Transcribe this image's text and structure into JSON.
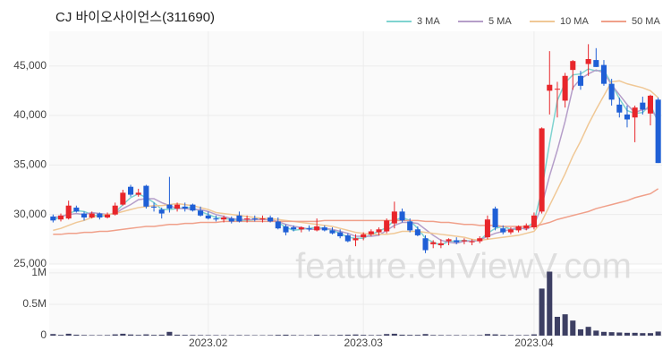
{
  "chart_data": [
    {
      "type": "candlestick",
      "title": "CJ 바이오사이언스(311690)",
      "watermark": "feature.enViewV.com",
      "categories": [
        null,
        null,
        null,
        null,
        null,
        null,
        null,
        null,
        null,
        null,
        null,
        null,
        null,
        null,
        null,
        null,
        null,
        null,
        null,
        null,
        "2023.02",
        null,
        null,
        null,
        null,
        null,
        null,
        null,
        null,
        null,
        null,
        null,
        null,
        null,
        null,
        null,
        null,
        null,
        null,
        null,
        "2023.03",
        null,
        null,
        null,
        null,
        null,
        null,
        null,
        null,
        null,
        null,
        null,
        null,
        null,
        null,
        null,
        null,
        null,
        null,
        null,
        null,
        null,
        "2023.04",
        null,
        null,
        null,
        null,
        null,
        null,
        null,
        null,
        null,
        null,
        null,
        null,
        null,
        null,
        null,
        null
      ],
      "open": [
        29800,
        29500,
        29600,
        30700,
        30100,
        29700,
        30100,
        29700,
        30000,
        31000,
        32800,
        32000,
        32900,
        30800,
        30500,
        31000,
        30600,
        30800,
        31000,
        30400,
        29900,
        29600,
        29500,
        29600,
        29900,
        29500,
        29600,
        29500,
        29700,
        29300,
        28800,
        28700,
        28500,
        28600,
        28400,
        28700,
        28400,
        28200,
        27900,
        27400,
        27700,
        28000,
        28200,
        28300,
        29100,
        30300,
        29300,
        28500,
        27600,
        27000,
        26900,
        27300,
        27400,
        27300,
        27200,
        27300,
        27700,
        30600,
        28600,
        28200,
        28400,
        28600,
        28700,
        30300,
        42500,
        42700,
        41500,
        44600,
        44000,
        45200,
        45600,
        45100,
        43200,
        41100,
        40100,
        39800,
        41300,
        40200,
        41600
      ],
      "high": [
        30000,
        30100,
        31400,
        30900,
        30300,
        30300,
        30200,
        30200,
        31200,
        32500,
        33000,
        32600,
        33000,
        31200,
        30700,
        33800,
        31200,
        31200,
        31100,
        30800,
        30300,
        29900,
        29900,
        29800,
        30300,
        29900,
        29900,
        29900,
        29900,
        29700,
        29000,
        28900,
        28800,
        28900,
        29600,
        28900,
        28700,
        28500,
        28100,
        28000,
        28200,
        28500,
        28700,
        29600,
        31300,
        30600,
        29600,
        28800,
        27900,
        27400,
        27500,
        27600,
        27700,
        27600,
        27500,
        27800,
        29900,
        30800,
        28900,
        28700,
        28900,
        29100,
        30200,
        38800,
        46500,
        43400,
        44300,
        45600,
        44500,
        47200,
        46800,
        45600,
        43700,
        41800,
        41000,
        41000,
        41900,
        42100,
        41800
      ],
      "low": [
        29200,
        29300,
        29500,
        30200,
        29400,
        29600,
        29500,
        29600,
        29900,
        30900,
        31800,
        31800,
        30600,
        30300,
        29600,
        30200,
        30300,
        30300,
        30300,
        29800,
        29500,
        29300,
        29200,
        29100,
        29200,
        29200,
        29300,
        29200,
        29200,
        28500,
        27900,
        28300,
        28200,
        28300,
        28300,
        28300,
        28000,
        27600,
        27200,
        26800,
        27400,
        27800,
        27900,
        28100,
        28600,
        29200,
        28200,
        27800,
        26100,
        26600,
        26600,
        26900,
        27000,
        27000,
        26900,
        27100,
        27500,
        28400,
        28000,
        28000,
        28200,
        28400,
        28500,
        30100,
        40100,
        39800,
        40800,
        42600,
        42600,
        44000,
        44900,
        43000,
        41000,
        39800,
        38800,
        37300,
        40100,
        39000,
        35200
      ],
      "close": [
        29400,
        29900,
        30900,
        30300,
        29700,
        30100,
        29700,
        30000,
        30900,
        32200,
        32000,
        32200,
        30800,
        30700,
        30100,
        30600,
        31000,
        30600,
        30400,
        29900,
        29600,
        29500,
        29700,
        29300,
        29300,
        29600,
        29500,
        29600,
        29300,
        28600,
        28200,
        28500,
        28700,
        28500,
        28800,
        28400,
        28100,
        27800,
        27300,
        27600,
        28000,
        28300,
        28500,
        29400,
        30300,
        29400,
        28400,
        27900,
        26400,
        27200,
        27100,
        27500,
        27200,
        27400,
        27300,
        27600,
        29500,
        28700,
        28200,
        28500,
        28800,
        28900,
        29900,
        38700,
        43100,
        42700,
        44000,
        45500,
        43000,
        45700,
        44900,
        43200,
        41600,
        40300,
        39600,
        40800,
        40600,
        42000,
        35200
      ],
      "up_color": "#e8262b",
      "down_color": "#1f5fd6",
      "series": [
        {
          "name": "3 MA",
          "color": "#7fd3d0",
          "values": [
            29500,
            29700,
            30100,
            30400,
            30300,
            30000,
            29800,
            29900,
            30200,
            31000,
            31700,
            32100,
            31700,
            31200,
            30500,
            30500,
            30600,
            30700,
            30700,
            30300,
            30000,
            29700,
            29600,
            29500,
            29400,
            29400,
            29500,
            29600,
            29500,
            29200,
            28700,
            28400,
            28500,
            28600,
            28700,
            28600,
            28400,
            28100,
            27700,
            27600,
            27600,
            28000,
            28300,
            28700,
            29400,
            29700,
            29400,
            28600,
            27600,
            27200,
            26900,
            27300,
            27300,
            27400,
            27300,
            27400,
            28100,
            28600,
            28800,
            28500,
            28500,
            28700,
            29200,
            32500,
            37200,
            41500,
            43300,
            44100,
            44200,
            44700,
            44500,
            44600,
            43200,
            41700,
            40500,
            40200,
            40300,
            41100,
            39300
          ]
        },
        {
          "name": "5 MA",
          "color": "#b59ec9",
          "values": [
            29700,
            29800,
            30000,
            30100,
            30000,
            30200,
            30100,
            30000,
            30100,
            30600,
            31000,
            31500,
            31600,
            31600,
            31200,
            30900,
            30600,
            30600,
            30500,
            30500,
            30300,
            30000,
            29800,
            29600,
            29500,
            29500,
            29500,
            29500,
            29500,
            29300,
            29000,
            28800,
            28700,
            28500,
            28500,
            28600,
            28500,
            28300,
            28100,
            27800,
            27800,
            27800,
            27900,
            28400,
            28900,
            29200,
            29200,
            29100,
            28500,
            27900,
            27400,
            27200,
            27100,
            27300,
            27300,
            27400,
            27800,
            28100,
            28300,
            28500,
            28700,
            28500,
            28900,
            30900,
            33900,
            36500,
            39400,
            42800,
            43700,
            44200,
            44600,
            44300,
            43100,
            42100,
            41100,
            40300,
            40600,
            40700,
            39600
          ]
        },
        {
          "name": "10 MA",
          "color": "#f0c896",
          "values": [
            28400,
            28600,
            28900,
            29200,
            29400,
            29700,
            29900,
            30000,
            30100,
            30300,
            30500,
            30700,
            30800,
            30900,
            30900,
            31000,
            31100,
            31000,
            30900,
            30700,
            30500,
            30200,
            30100,
            30000,
            29900,
            29800,
            29700,
            29600,
            29600,
            29500,
            29400,
            29300,
            29200,
            29100,
            29000,
            28900,
            28800,
            28600,
            28400,
            28200,
            28100,
            28000,
            28000,
            28000,
            28100,
            28300,
            28300,
            28300,
            28200,
            28100,
            28000,
            27900,
            27800,
            27700,
            27500,
            27400,
            27500,
            27600,
            27700,
            27800,
            27900,
            28100,
            28300,
            29300,
            30900,
            32500,
            34100,
            35900,
            37400,
            39100,
            40600,
            42000,
            43400,
            43500,
            43200,
            43000,
            42800,
            42500,
            41800
          ]
        },
        {
          "name": "50 MA",
          "color": "#f0a08a",
          "values": [
            28000,
            28000,
            28100,
            28100,
            28200,
            28200,
            28300,
            28300,
            28400,
            28500,
            28600,
            28700,
            28800,
            28800,
            28900,
            29000,
            29000,
            29100,
            29100,
            29200,
            29200,
            29200,
            29300,
            29300,
            29300,
            29300,
            29300,
            29300,
            29300,
            29300,
            29300,
            29300,
            29300,
            29300,
            29300,
            29400,
            29400,
            29400,
            29400,
            29400,
            29400,
            29400,
            29400,
            29400,
            29400,
            29400,
            29400,
            29400,
            29300,
            29300,
            29200,
            29200,
            29100,
            29000,
            29000,
            28900,
            28900,
            28900,
            28800,
            28800,
            28800,
            28800,
            28800,
            29000,
            29200,
            29500,
            29700,
            29900,
            30100,
            30300,
            30600,
            30800,
            31000,
            31200,
            31400,
            31700,
            31900,
            32100,
            32600
          ]
        }
      ],
      "ylim": [
        25000,
        48500
      ],
      "yticks": [
        {
          "value": 25000,
          "label": "25,000"
        },
        {
          "value": 30000,
          "label": "30,000"
        },
        {
          "value": 35000,
          "label": "35,000"
        },
        {
          "value": 40000,
          "label": "40,000"
        },
        {
          "value": 45000,
          "label": "45,000"
        }
      ],
      "grid": true
    },
    {
      "type": "bar",
      "color": "#3d3f63",
      "values": [
        25000,
        12000,
        30000,
        15000,
        10000,
        8000,
        8000,
        9000,
        20000,
        30000,
        18000,
        12000,
        20000,
        12000,
        15000,
        60000,
        15000,
        12000,
        10000,
        9000,
        8000,
        8000,
        7000,
        8000,
        9000,
        8000,
        7000,
        7000,
        8000,
        12000,
        15000,
        9000,
        8000,
        7000,
        15000,
        8000,
        9000,
        12000,
        15000,
        18000,
        12000,
        9000,
        10000,
        25000,
        30000,
        15000,
        12000,
        12000,
        25000,
        10000,
        9000,
        8000,
        8000,
        7000,
        7000,
        9000,
        25000,
        20000,
        12000,
        10000,
        9000,
        9000,
        20000,
        750000,
        1020000,
        300000,
        340000,
        240000,
        100000,
        140000,
        80000,
        60000,
        55000,
        50000,
        45000,
        45000,
        40000,
        40000,
        65000
      ],
      "ylim": [
        0,
        1070000
      ],
      "yticks": [
        0,
        {
          "value": 500000,
          "label": "0.5M"
        },
        {
          "value": 1000000,
          "label": "1M"
        }
      ]
    }
  ]
}
